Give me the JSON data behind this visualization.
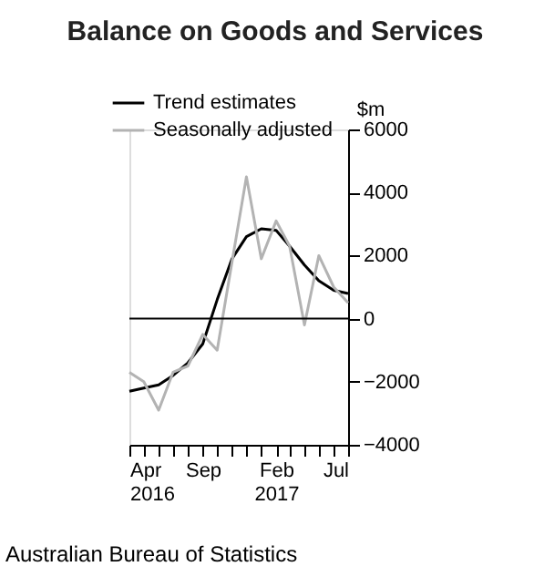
{
  "chart_data": {
    "type": "line",
    "title": "Balance on Goods and Services",
    "ylabel": "$m",
    "x": [
      "2016-04",
      "2016-05",
      "2016-06",
      "2016-07",
      "2016-08",
      "2016-09",
      "2016-10",
      "2016-11",
      "2016-12",
      "2017-01",
      "2017-02",
      "2017-03",
      "2017-04",
      "2017-05",
      "2017-06",
      "2017-07"
    ],
    "series": [
      {
        "name": "Trend estimates",
        "color": "#000000",
        "values": [
          -2300,
          -2200,
          -2100,
          -1800,
          -1400,
          -800,
          600,
          1900,
          2600,
          2850,
          2800,
          2300,
          1700,
          1200,
          900,
          800
        ]
      },
      {
        "name": "Seasonally adjusted",
        "color": "#b3b3b3",
        "values": [
          -1700,
          -2000,
          -2900,
          -1700,
          -1500,
          -500,
          -1000,
          1800,
          4500,
          1900,
          3100,
          2300,
          -200,
          2000,
          1000,
          500
        ]
      }
    ],
    "ylim": [
      -4000,
      6000
    ],
    "yticks": [
      -4000,
      -2000,
      0,
      2000,
      4000,
      6000
    ],
    "xlim": [
      "2016-04",
      "2017-07"
    ],
    "xticks": [
      {
        "value": "2016-04",
        "label": "Apr\n2016"
      },
      {
        "value": "2016-05",
        "label": null
      },
      {
        "value": "2016-06",
        "label": null
      },
      {
        "value": "2016-07",
        "label": null
      },
      {
        "value": "2016-08",
        "label": null
      },
      {
        "value": "2016-09",
        "label": "Sep"
      },
      {
        "value": "2016-10",
        "label": null
      },
      {
        "value": "2016-11",
        "label": null
      },
      {
        "value": "2016-12",
        "label": null
      },
      {
        "value": "2017-01",
        "label": null
      },
      {
        "value": "2017-02",
        "label": "Feb\n2017"
      },
      {
        "value": "2017-03",
        "label": null
      },
      {
        "value": "2017-04",
        "label": null
      },
      {
        "value": "2017-05",
        "label": null
      },
      {
        "value": "2017-06",
        "label": null
      },
      {
        "value": "2017-07",
        "label": "Jul"
      }
    ],
    "ref_lines": [
      {
        "axis": "y",
        "value": 0,
        "color": "#000000"
      }
    ],
    "legend": "top left",
    "grid": false,
    "marker": "none",
    "line_style": "solid",
    "annotations": [
      "Australian Bureau of Statistics"
    ]
  }
}
